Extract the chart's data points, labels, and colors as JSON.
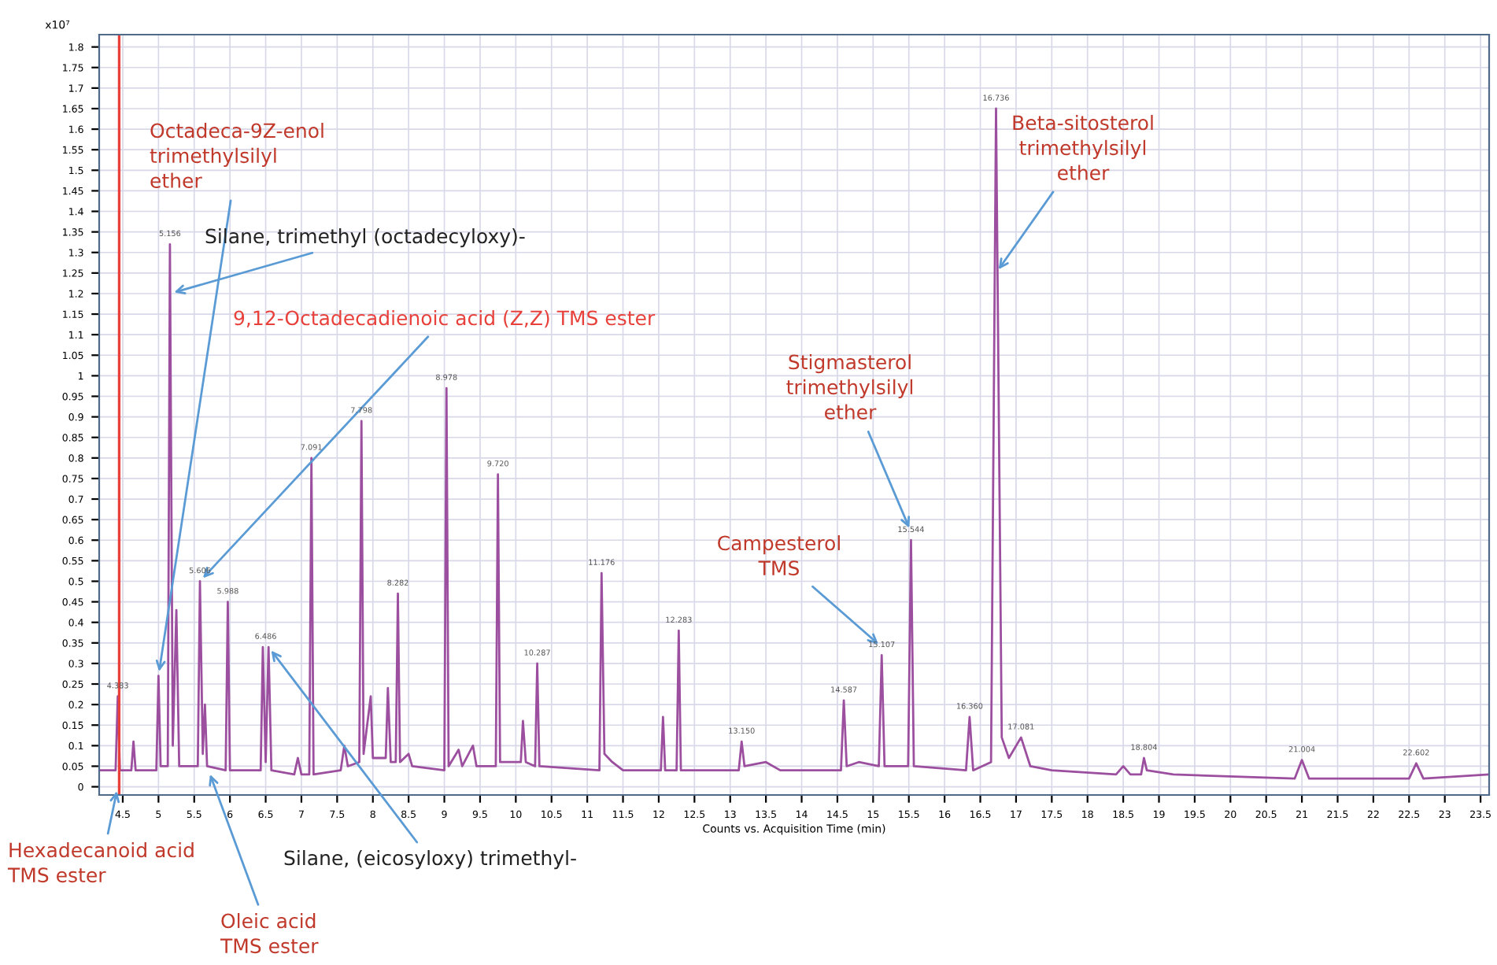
{
  "chart_data": {
    "type": "line",
    "xlabel": "Counts vs. Acquisition Time (min)",
    "ylabel": "x10⁷",
    "xlim": [
      4.17,
      23.62
    ],
    "ylim": [
      -0.02,
      1.83
    ],
    "xticks": [
      4.5,
      5,
      5.5,
      6,
      6.5,
      7,
      7.5,
      8,
      8.5,
      9,
      9.5,
      10,
      10.5,
      11,
      11.5,
      12,
      12.5,
      13,
      13.5,
      14,
      14.5,
      15,
      15.5,
      16,
      16.5,
      17,
      17.5,
      18,
      18.5,
      19,
      19.5,
      20,
      20.5,
      21,
      21.5,
      22,
      22.5,
      23,
      23.5
    ],
    "yticks": [
      0,
      0.05,
      0.1,
      0.15,
      0.2,
      0.25,
      0.3,
      0.35,
      0.4,
      0.45,
      0.5,
      0.55,
      0.6,
      0.65,
      0.7,
      0.75,
      0.8,
      0.85,
      0.9,
      0.95,
      1,
      1.05,
      1.1,
      1.15,
      1.2,
      1.25,
      1.3,
      1.35,
      1.4,
      1.45,
      1.5,
      1.55,
      1.6,
      1.65,
      1.7,
      1.75,
      1.8
    ],
    "grid": true,
    "x": [
      4.17,
      4.4,
      4.43,
      4.46,
      4.62,
      4.65,
      4.68,
      4.97,
      5.0,
      5.03,
      5.13,
      5.16,
      5.2,
      5.25,
      5.29,
      5.55,
      5.58,
      5.62,
      5.65,
      5.68,
      5.94,
      5.97,
      6.0,
      6.43,
      6.46,
      6.5,
      6.54,
      6.58,
      6.9,
      6.95,
      7.0,
      7.11,
      7.14,
      7.17,
      7.55,
      7.6,
      7.65,
      7.81,
      7.84,
      7.87,
      7.97,
      8.0,
      8.18,
      8.21,
      8.25,
      8.32,
      8.35,
      8.38,
      8.5,
      8.55,
      9.0,
      9.03,
      9.06,
      9.2,
      9.25,
      9.4,
      9.45,
      9.72,
      9.75,
      9.78,
      10.07,
      10.1,
      10.14,
      10.27,
      10.3,
      10.33,
      11.17,
      11.2,
      11.24,
      11.35,
      11.5,
      12.03,
      12.06,
      12.09,
      12.25,
      12.28,
      12.31,
      13.12,
      13.16,
      13.2,
      13.5,
      13.7,
      14.55,
      14.59,
      14.63,
      14.8,
      15.08,
      15.12,
      15.16,
      15.49,
      15.53,
      15.57,
      16.3,
      16.35,
      16.4,
      16.65,
      16.72,
      16.8,
      16.9,
      17.07,
      17.2,
      17.5,
      18.4,
      18.5,
      18.6,
      18.75,
      18.79,
      18.83,
      19.2,
      20.9,
      21.0,
      21.1,
      22.5,
      22.6,
      22.7,
      23.62
    ],
    "series": [
      {
        "color": "#9b4f9e",
        "values": [
          0.04,
          0.04,
          0.22,
          0.04,
          0.04,
          0.11,
          0.04,
          0.04,
          0.27,
          0.05,
          0.05,
          1.32,
          0.1,
          0.43,
          0.05,
          0.05,
          0.5,
          0.08,
          0.2,
          0.05,
          0.04,
          0.45,
          0.04,
          0.04,
          0.34,
          0.06,
          0.34,
          0.04,
          0.03,
          0.07,
          0.03,
          0.03,
          0.8,
          0.03,
          0.04,
          0.1,
          0.05,
          0.06,
          0.89,
          0.08,
          0.22,
          0.07,
          0.07,
          0.24,
          0.06,
          0.06,
          0.47,
          0.06,
          0.08,
          0.05,
          0.04,
          0.97,
          0.05,
          0.09,
          0.05,
          0.1,
          0.05,
          0.05,
          0.76,
          0.06,
          0.06,
          0.16,
          0.06,
          0.05,
          0.3,
          0.05,
          0.04,
          0.52,
          0.08,
          0.06,
          0.04,
          0.04,
          0.17,
          0.04,
          0.04,
          0.38,
          0.04,
          0.04,
          0.11,
          0.05,
          0.06,
          0.04,
          0.04,
          0.21,
          0.05,
          0.06,
          0.05,
          0.32,
          0.05,
          0.05,
          0.6,
          0.05,
          0.04,
          0.17,
          0.04,
          0.06,
          1.65,
          0.12,
          0.07,
          0.12,
          0.05,
          0.04,
          0.03,
          0.05,
          0.03,
          0.03,
          0.07,
          0.04,
          0.03,
          0.02,
          0.065,
          0.02,
          0.02,
          0.057,
          0.02,
          0.03
        ]
      }
    ],
    "ref_lines": [
      {
        "axis": "x",
        "value": 4.45,
        "color": "#e8413c"
      }
    ],
    "annotations": [
      {
        "text": "Octadeca-9Z-enol\ntrimethylsilyl\nether",
        "x": 5.0,
        "y": 0.27
      },
      {
        "text": "Silane, trimethyl (octadecyloxy)-",
        "x": 5.16,
        "y": 1.2
      },
      {
        "text": "9,12-Octadecadienoic acid (Z,Z) TMS ester",
        "x": 5.58,
        "y": 0.5
      },
      {
        "text": "Stigmasterol\ntrimethylsilyl\nether",
        "x": 15.53,
        "y": 0.62
      },
      {
        "text": "Campesterol\nTMS",
        "x": 15.12,
        "y": 0.34
      },
      {
        "text": "Beta-sitosterol\ntrimethylsilyl\nether",
        "x": 16.72,
        "y": 1.25
      },
      {
        "text": "Hexadecanoid acid\nTMS ester",
        "x": 4.43,
        "y": 0
      },
      {
        "text": "Oleic acid\nTMS ester",
        "x": 5.7,
        "y": 0.04
      },
      {
        "text": "Silane, (eicosyloxy) trimethyl-",
        "x": 6.54,
        "y": 0.34
      },
      {
        "text": "4.383",
        "x": 4.43,
        "y": 0.22
      },
      {
        "text": "5.156",
        "x": 5.16,
        "y": 1.32
      },
      {
        "text": "5.606",
        "x": 5.58,
        "y": 0.5
      },
      {
        "text": "5.988",
        "x": 5.97,
        "y": 0.45
      },
      {
        "text": "6.486",
        "x": 6.5,
        "y": 0.34
      },
      {
        "text": "7.091",
        "x": 7.14,
        "y": 0.8
      },
      {
        "text": "7.798",
        "x": 7.84,
        "y": 0.89
      },
      {
        "text": "8.282",
        "x": 8.35,
        "y": 0.47
      },
      {
        "text": "8.978",
        "x": 9.03,
        "y": 0.97
      },
      {
        "text": "9.720",
        "x": 9.75,
        "y": 0.76
      },
      {
        "text": "10.287",
        "x": 10.3,
        "y": 0.3
      },
      {
        "text": "11.176",
        "x": 11.2,
        "y": 0.52
      },
      {
        "text": "12.283",
        "x": 12.28,
        "y": 0.38
      },
      {
        "text": "13.150",
        "x": 13.16,
        "y": 0.11
      },
      {
        "text": "14.587",
        "x": 14.59,
        "y": 0.21
      },
      {
        "text": "15.107",
        "x": 15.12,
        "y": 0.32
      },
      {
        "text": "15.544",
        "x": 15.53,
        "y": 0.6
      },
      {
        "text": "16.360",
        "x": 16.35,
        "y": 0.17
      },
      {
        "text": "16.736",
        "x": 16.72,
        "y": 1.65
      },
      {
        "text": "17.081",
        "x": 17.07,
        "y": 0.12
      },
      {
        "text": "18.804",
        "x": 18.79,
        "y": 0.07
      },
      {
        "text": "21.004",
        "x": 21.0,
        "y": 0.065
      },
      {
        "text": "22.602",
        "x": 22.6,
        "y": 0.057
      }
    ]
  }
}
